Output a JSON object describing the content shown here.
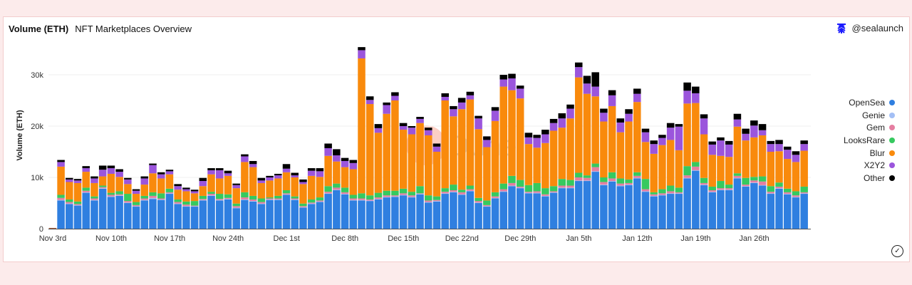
{
  "header": {
    "metric": "Volume (ETH)",
    "title": "NFT Marketplaces Overview",
    "author": "@sealaunch"
  },
  "watermark": "Dune",
  "chart_data": {
    "type": "bar",
    "stacked": true,
    "title": "NFT Marketplaces Overview",
    "xlabel": "",
    "ylabel": "Volume (ETH)",
    "ylim": [
      0,
      36000
    ],
    "yticks": [
      {
        "value": 0,
        "label": "0"
      },
      {
        "value": 10000,
        "label": "10k"
      },
      {
        "value": 20000,
        "label": "20k"
      },
      {
        "value": 30000,
        "label": "30k"
      }
    ],
    "xticks": [
      {
        "index": 0,
        "label": "Nov 3rd"
      },
      {
        "index": 7,
        "label": "Nov 10th"
      },
      {
        "index": 14,
        "label": "Nov 17th"
      },
      {
        "index": 21,
        "label": "Nov 24th"
      },
      {
        "index": 28,
        "label": "Dec 1st"
      },
      {
        "index": 35,
        "label": "Dec 8th"
      },
      {
        "index": 42,
        "label": "Dec 15th"
      },
      {
        "index": 49,
        "label": "Dec 22nd"
      },
      {
        "index": 56,
        "label": "Dec 29th"
      },
      {
        "index": 63,
        "label": "Jan 5th"
      },
      {
        "index": 70,
        "label": "Jan 12th"
      },
      {
        "index": 77,
        "label": "Jan 19th"
      },
      {
        "index": 84,
        "label": "Jan 26th"
      }
    ],
    "grid": true,
    "legend_position": "right",
    "categories": [
      "Nov 3",
      "Nov 4",
      "Nov 5",
      "Nov 6",
      "Nov 7",
      "Nov 8",
      "Nov 9",
      "Nov 10",
      "Nov 11",
      "Nov 12",
      "Nov 13",
      "Nov 14",
      "Nov 15",
      "Nov 16",
      "Nov 17",
      "Nov 18",
      "Nov 19",
      "Nov 20",
      "Nov 21",
      "Nov 22",
      "Nov 23",
      "Nov 24",
      "Nov 25",
      "Nov 26",
      "Nov 27",
      "Nov 28",
      "Nov 29",
      "Nov 30",
      "Dec 1",
      "Dec 2",
      "Dec 3",
      "Dec 4",
      "Dec 5",
      "Dec 6",
      "Dec 7",
      "Dec 8",
      "Dec 9",
      "Dec 10",
      "Dec 11",
      "Dec 12",
      "Dec 13",
      "Dec 14",
      "Dec 15",
      "Dec 16",
      "Dec 17",
      "Dec 18",
      "Dec 19",
      "Dec 20",
      "Dec 21",
      "Dec 22",
      "Dec 23",
      "Dec 24",
      "Dec 25",
      "Dec 26",
      "Dec 27",
      "Dec 28",
      "Dec 29",
      "Dec 30",
      "Dec 31",
      "Jan 1",
      "Jan 2",
      "Jan 3",
      "Jan 4",
      "Jan 5",
      "Jan 6",
      "Jan 7",
      "Jan 8",
      "Jan 9",
      "Jan 10",
      "Jan 11",
      "Jan 12",
      "Jan 13",
      "Jan 14",
      "Jan 15",
      "Jan 16",
      "Jan 17",
      "Jan 18",
      "Jan 19",
      "Jan 20",
      "Jan 21",
      "Jan 22",
      "Jan 23",
      "Jan 24",
      "Jan 25",
      "Jan 26",
      "Jan 27",
      "Jan 28",
      "Jan 29",
      "Jan 30",
      "Jan 31",
      "Feb 1"
    ],
    "series": [
      {
        "name": "OpenSea",
        "color": "#2f7fe0",
        "values": [
          0,
          5.5,
          4.8,
          4.5,
          7.0,
          5.5,
          7.8,
          6.2,
          6.4,
          5.0,
          4.3,
          5.5,
          5.8,
          5.6,
          6.8,
          4.8,
          4.3,
          4.3,
          5.5,
          6.4,
          5.5,
          5.7,
          4.0,
          5.6,
          5.3,
          4.8,
          5.6,
          5.6,
          6.6,
          5.6,
          4.1,
          4.8,
          5.2,
          6.8,
          7.5,
          6.7,
          5.5,
          5.5,
          5.4,
          5.7,
          6.1,
          6.2,
          6.5,
          6.1,
          6.7,
          5.1,
          5.3,
          6.8,
          7.1,
          6.6,
          7.3,
          5.0,
          4.3,
          5.9,
          7.2,
          8.3,
          7.9,
          6.9,
          6.9,
          6.3,
          7.0,
          7.9,
          7.9,
          9.3,
          9.3,
          11.1,
          8.5,
          9.2,
          8.3,
          8.5,
          9.8,
          7.2,
          6.3,
          6.5,
          6.8,
          6.8,
          9.8,
          11.3,
          8.5,
          7.1,
          7.5,
          7.5,
          9.8,
          8.2,
          8.9,
          8.4,
          6.8,
          7.8,
          6.7,
          6.1,
          6.8
        ]
      },
      {
        "name": "Genie",
        "color": "#a3bff5",
        "values": [
          0,
          0.1,
          0.1,
          0.1,
          0.1,
          0.1,
          0.1,
          0.1,
          0.1,
          0.1,
          0.1,
          0.1,
          0.2,
          0.1,
          0.1,
          0.1,
          0.1,
          0.1,
          0.1,
          0.1,
          0.1,
          0.1,
          0.1,
          0.1,
          0.1,
          0.1,
          0.1,
          0.1,
          0.1,
          0.1,
          0.1,
          0.1,
          0.1,
          0.1,
          0.1,
          0.1,
          0.1,
          0.1,
          0.1,
          0.1,
          0.1,
          0.1,
          0.1,
          0.1,
          0.1,
          0.1,
          0.1,
          0.1,
          0.1,
          0.1,
          0.1,
          0.1,
          0.1,
          0.1,
          0.1,
          0.1,
          0.1,
          0.1,
          0.1,
          0.1,
          0.1,
          0.1,
          0.1,
          0.1,
          0.1,
          0.1,
          0.1,
          0.1,
          0.1,
          0.1,
          0.1,
          0.1,
          0.1,
          0.1,
          0.1,
          0.1,
          0.1,
          0.1,
          0.1,
          0.1,
          0.1,
          0.1,
          0.1,
          0.1,
          0.1,
          0.1,
          0.1,
          0.1,
          0.1,
          0.1,
          0.1
        ]
      },
      {
        "name": "Gem",
        "color": "#e57ea1",
        "values": [
          0,
          0.4,
          0.3,
          0.2,
          0.3,
          0.3,
          0.2,
          0.3,
          0.2,
          0.3,
          0.2,
          0.3,
          0.4,
          0.2,
          0.2,
          0.3,
          0.3,
          0.1,
          0.2,
          0.3,
          0.2,
          0.2,
          0.3,
          0.4,
          0.3,
          0.3,
          0.2,
          0.2,
          0.2,
          0.2,
          0.2,
          0.2,
          0.2,
          0.3,
          0.4,
          0.3,
          0.3,
          0.3,
          0.2,
          0.3,
          0.3,
          0.2,
          0.3,
          0.3,
          0.1,
          0.3,
          0.2,
          0.3,
          0.3,
          0.4,
          0.3,
          0.3,
          0.2,
          0.3,
          0.4,
          0.5,
          0.2,
          0.2,
          0.3,
          0.3,
          0.2,
          0.4,
          0.4,
          0.6,
          0.5,
          0.8,
          0.5,
          0.5,
          0.4,
          0.3,
          0.4,
          0.4,
          0.3,
          0.3,
          0.4,
          0.2,
          0.5,
          0.7,
          0.3,
          0.3,
          0.3,
          0.3,
          0.4,
          0.3,
          0.4,
          0.7,
          0.3,
          0.3,
          0.3,
          0.3,
          0.2
        ]
      },
      {
        "name": "LooksRare",
        "color": "#36c95f",
        "values": [
          0,
          0.6,
          0.5,
          0.5,
          0.6,
          0.4,
          0.3,
          0.4,
          0.6,
          1.4,
          0.6,
          0.5,
          0.7,
          1.0,
          0.7,
          0.5,
          0.6,
          0.9,
          0.6,
          0.4,
          1.0,
          0.7,
          0.5,
          1.0,
          0.7,
          0.7,
          0.2,
          0.5,
          0.6,
          0.4,
          0.5,
          0.6,
          0.6,
          1.1,
          0.8,
          0.9,
          0.7,
          1.0,
          0.8,
          0.9,
          0.9,
          0.9,
          0.9,
          0.7,
          1.4,
          1.0,
          0.7,
          0.7,
          1.1,
          0.5,
          0.7,
          0.6,
          0.9,
          0.8,
          1.1,
          1.4,
          1.3,
          1.3,
          1.6,
          1.2,
          1.0,
          1.3,
          1.1,
          0.9,
          0.5,
          0.7,
          0.9,
          1.2,
          1.0,
          0.7,
          0.7,
          2.0,
          0.4,
          0.8,
          1.1,
          0.9,
          1.8,
          0.9,
          1.0,
          0.7,
          1.4,
          0.7,
          0.5,
          1.3,
          0.7,
          1.0,
          1.1,
          0.8,
          0.7,
          0.8,
          1.1
        ]
      },
      {
        "name": "Blur",
        "color": "#f98a0c",
        "values": [
          0.15,
          5.5,
          3.4,
          3.6,
          3.1,
          2.6,
          1.8,
          3.7,
          2.8,
          1.9,
          1.6,
          2.2,
          3.7,
          2.9,
          2.8,
          1.9,
          2.0,
          1.5,
          1.9,
          3.4,
          3.0,
          3.6,
          3.0,
          5.9,
          5.6,
          3.0,
          3.3,
          3.4,
          3.5,
          3.7,
          3.8,
          4.6,
          4.0,
          5.9,
          4.3,
          4.0,
          5.0,
          26.3,
          17.8,
          11.7,
          15.0,
          17.6,
          11.5,
          11.2,
          12.3,
          11.7,
          8.7,
          17.1,
          13.3,
          15.7,
          16.8,
          13.4,
          10.4,
          13.9,
          18.9,
          16.7,
          15.9,
          8.0,
          6.9,
          8.8,
          10.8,
          10.0,
          12.0,
          18.6,
          15.9,
          13.1,
          10.9,
          12.9,
          9.0,
          11.3,
          13.7,
          7.2,
          7.5,
          8.6,
          8.9,
          7.3,
          12.2,
          11.5,
          8.5,
          6.2,
          4.9,
          5.4,
          9.1,
          7.3,
          7.7,
          8.0,
          6.7,
          6.1,
          5.8,
          5.7,
          7.0
        ]
      },
      {
        "name": "X2Y2",
        "color": "#9b55dc",
        "values": [
          0,
          0.9,
          0.5,
          0.5,
          0.7,
          0.9,
          1.3,
          1.1,
          1.0,
          0.9,
          0.6,
          1.2,
          1.6,
          0.8,
          0.6,
          0.7,
          0.4,
          0.4,
          1.0,
          0.8,
          1.6,
          0.5,
          0.6,
          1.1,
          0.6,
          0.5,
          0.6,
          0.6,
          0.7,
          0.4,
          0.4,
          1.0,
          1.1,
          1.5,
          1.2,
          1.2,
          1.2,
          1.6,
          0.8,
          0.9,
          1.7,
          0.9,
          0.7,
          1.3,
          0.8,
          1.0,
          1.0,
          0.7,
          1.4,
          1.3,
          0.8,
          2.1,
          1.4,
          2.0,
          1.4,
          2.3,
          1.9,
          1.3,
          1.9,
          1.7,
          1.5,
          1.8,
          1.9,
          2.0,
          2.0,
          1.9,
          1.7,
          2.1,
          1.9,
          1.5,
          1.6,
          1.9,
          1.9,
          1.4,
          2.4,
          4.6,
          2.5,
          1.9,
          3.1,
          2.0,
          3.0,
          2.4,
          1.4,
          1.3,
          2.3,
          1.0,
          1.5,
          1.4,
          1.8,
          1.4,
          1.3
        ]
      },
      {
        "name": "Other",
        "color": "#000000",
        "values": [
          0,
          0.4,
          0.3,
          0.3,
          0.4,
          0.4,
          0.8,
          0.5,
          0.5,
          0.3,
          0.3,
          0.4,
          0.3,
          0.4,
          0.3,
          0.4,
          0.3,
          0.3,
          0.6,
          0.4,
          0.4,
          0.5,
          0.3,
          0.4,
          0.6,
          0.5,
          0.3,
          0.3,
          0.9,
          0.5,
          0.5,
          0.5,
          0.6,
          0.9,
          1.2,
          0.6,
          0.6,
          0.6,
          0.7,
          0.8,
          0.5,
          0.7,
          0.6,
          0.3,
          0.4,
          0.5,
          0.6,
          0.7,
          0.6,
          0.9,
          0.7,
          0.5,
          0.7,
          0.7,
          0.9,
          0.9,
          0.6,
          0.9,
          0.6,
          0.9,
          0.8,
          1.0,
          0.8,
          0.9,
          1.5,
          2.8,
          0.8,
          1.0,
          0.8,
          0.9,
          1.0,
          0.7,
          0.7,
          0.6,
          0.9,
          0.5,
          1.6,
          1.3,
          0.8,
          0.6,
          0.6,
          0.7,
          1.1,
          1.0,
          1.0,
          1.2,
          0.6,
          0.8,
          0.6,
          0.7,
          0.7
        ]
      }
    ],
    "value_unit": "thousand ETH"
  }
}
